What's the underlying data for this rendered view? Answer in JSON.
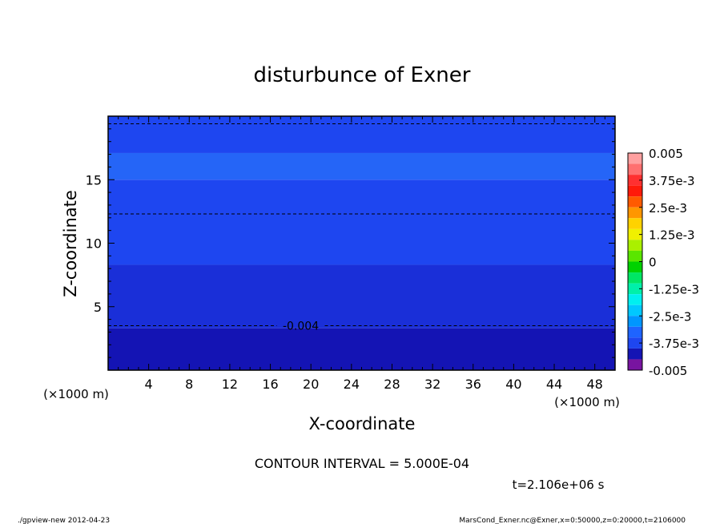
{
  "chart_data": {
    "type": "heatmap",
    "title": "disturbunce of Exner",
    "xlabel": "X-coordinate",
    "ylabel": "Z-coordinate",
    "x_unit": "(×1000 m)",
    "y_unit": "(×1000 m)",
    "xlim": [
      0,
      50
    ],
    "ylim": [
      0,
      20
    ],
    "x_ticks": [
      4,
      8,
      12,
      16,
      20,
      24,
      28,
      32,
      36,
      40,
      44,
      48
    ],
    "y_ticks": [
      5,
      10,
      15
    ],
    "bands": [
      {
        "z0": 0.0,
        "z1": 3.3,
        "color": "#1414b4"
      },
      {
        "z0": 3.3,
        "z1": 8.3,
        "color": "#1a2fd8"
      },
      {
        "z0": 8.3,
        "z1": 15.0,
        "color": "#1e46f0"
      },
      {
        "z0": 15.0,
        "z1": 17.1,
        "color": "#2565f7"
      },
      {
        "z0": 17.1,
        "z1": 20.0,
        "color": "#1e46f0"
      }
    ],
    "contour_lines": [
      {
        "z": 3.5,
        "label": "-0.004",
        "label_x": 19
      },
      {
        "z": 12.3,
        "label": ""
      },
      {
        "z": 19.4,
        "label": ""
      }
    ],
    "colorbar": {
      "levels": [
        0.005,
        0.0045,
        0.004,
        0.0035,
        0.003,
        0.0025,
        0.002,
        0.0015,
        0.001,
        0.0005,
        0,
        -0.0005,
        -0.001,
        -0.0015,
        -0.002,
        -0.0025,
        -0.003,
        -0.0035,
        -0.004,
        -0.0045,
        -0.005
      ],
      "colors": [
        "#ffa0a0",
        "#ff7070",
        "#ff3030",
        "#ff1a0a",
        "#ff5a00",
        "#ff9600",
        "#ffd200",
        "#f0f000",
        "#aaf000",
        "#5ae600",
        "#00d200",
        "#00e664",
        "#00f0aa",
        "#00f0f0",
        "#00c8ff",
        "#0096ff",
        "#1e64ff",
        "#1e46f0",
        "#1414b4",
        "#7814a0"
      ],
      "tick_labels": [
        {
          "v": 0.005,
          "text": "0.005"
        },
        {
          "v": 0.00375,
          "text": "3.75e-3"
        },
        {
          "v": 0.0025,
          "text": "2.5e-3"
        },
        {
          "v": 0.00125,
          "text": "1.25e-3"
        },
        {
          "v": 0,
          "text": "0"
        },
        {
          "v": -0.00125,
          "text": "-1.25e-3"
        },
        {
          "v": -0.0025,
          "text": "-2.5e-3"
        },
        {
          "v": -0.00375,
          "text": "-3.75e-3"
        },
        {
          "v": -0.005,
          "text": "-0.005"
        }
      ]
    }
  },
  "annotations": {
    "contour_interval": "CONTOUR INTERVAL = 5.000E-04",
    "time": "t=2.106e+06 s",
    "footer_left": "./gpview-new  2012-04-23",
    "footer_right": "MarsCond_Exner.nc@Exner,x=0:50000,z=0:20000,t=2106000"
  }
}
